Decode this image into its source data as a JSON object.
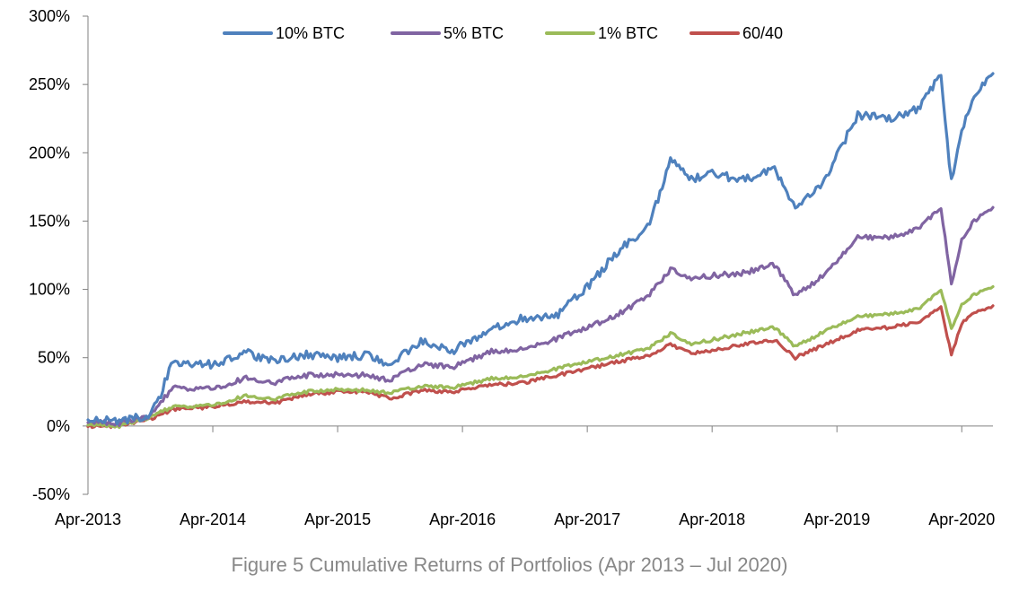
{
  "caption": "Figure 5 Cumulative Returns of Portfolios (Apr 2013 – Jul 2020)",
  "chart_data": {
    "type": "line",
    "title": "",
    "xlabel": "",
    "ylabel": "",
    "x_tick_labels": [
      "Apr-2013",
      "Apr-2014",
      "Apr-2015",
      "Apr-2016",
      "Apr-2017",
      "Apr-2018",
      "Apr-2019",
      "Apr-2020"
    ],
    "x_range": [
      "2013-04",
      "2020-07"
    ],
    "y_tick_labels": [
      "-50%",
      "0%",
      "50%",
      "100%",
      "150%",
      "200%",
      "250%",
      "300%"
    ],
    "y_ticks": [
      -50,
      0,
      50,
      100,
      150,
      200,
      250,
      300
    ],
    "ylim": [
      -50,
      300
    ],
    "y_unit": "%",
    "grid": false,
    "legend_position": "top",
    "x": [
      "2013-04",
      "2013-07",
      "2013-10",
      "2013-11",
      "2013-12",
      "2014-04",
      "2014-07",
      "2014-10",
      "2015-01",
      "2015-04",
      "2015-07",
      "2015-09",
      "2015-12",
      "2016-03",
      "2016-07",
      "2016-10",
      "2017-01",
      "2017-04",
      "2017-07",
      "2017-10",
      "2017-12",
      "2018-02",
      "2018-04",
      "2018-07",
      "2018-10",
      "2018-12",
      "2019-03",
      "2019-06",
      "2019-09",
      "2019-12",
      "2020-02",
      "2020-03",
      "2020-04",
      "2020-05",
      "2020-07"
    ],
    "series": [
      {
        "name": "10% BTC",
        "color": "#4f81bd",
        "values": [
          5,
          3,
          8,
          22,
          47,
          45,
          54,
          47,
          52,
          50,
          52,
          45,
          62,
          55,
          72,
          79,
          80,
          102,
          128,
          148,
          195,
          180,
          185,
          180,
          188,
          158,
          182,
          228,
          225,
          233,
          258,
          178,
          215,
          240,
          258
        ]
      },
      {
        "name": "5% BTC",
        "color": "#8064a2",
        "values": [
          3,
          2,
          7,
          16,
          28,
          27,
          35,
          32,
          37,
          38,
          37,
          33,
          45,
          43,
          55,
          56,
          64,
          72,
          82,
          96,
          115,
          108,
          110,
          112,
          118,
          95,
          112,
          138,
          138,
          145,
          160,
          105,
          135,
          148,
          160
        ]
      },
      {
        "name": "1% BTC",
        "color": "#9bbb59",
        "values": [
          1,
          0,
          6,
          10,
          14,
          15,
          22,
          20,
          25,
          27,
          26,
          24,
          29,
          28,
          35,
          36,
          42,
          47,
          52,
          57,
          68,
          60,
          63,
          68,
          72,
          58,
          70,
          80,
          82,
          86,
          100,
          72,
          88,
          95,
          102
        ]
      },
      {
        "name": "60/40",
        "color": "#c0504d",
        "values": [
          0,
          0,
          5,
          8,
          12,
          14,
          18,
          17,
          23,
          25,
          25,
          20,
          26,
          25,
          30,
          32,
          37,
          42,
          47,
          52,
          60,
          53,
          55,
          60,
          63,
          50,
          60,
          70,
          72,
          76,
          88,
          52,
          75,
          82,
          88
        ]
      }
    ]
  }
}
